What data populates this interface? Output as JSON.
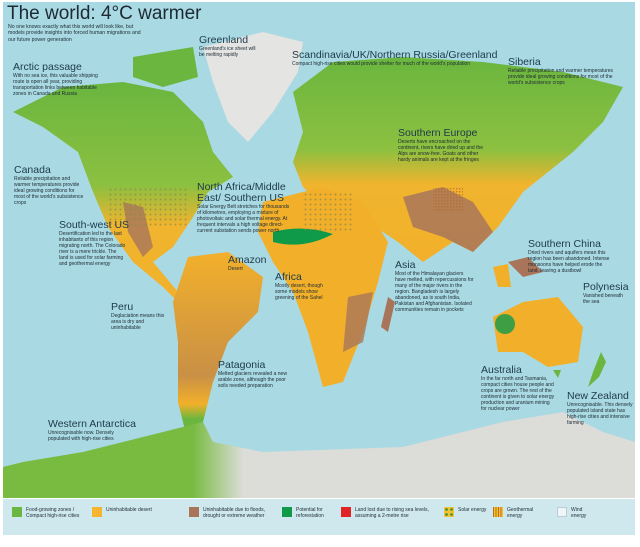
{
  "header": {
    "title": "The world: 4°C warmer",
    "subtitle": "No one knows exactly what this world will look like, but models provide insights into forced human migrations and our future power generation"
  },
  "regions": [
    {
      "heading": "Arctic passage",
      "text": "With no sea ice, this valuable shipping route is open all year, providing transportation links between habitable zones in Canada and Russia"
    },
    {
      "heading": "Greenland",
      "text": "Greenland's ice sheet will be melting rapidly"
    },
    {
      "heading": "Scandinavia/UK/Northern Russia/Greenland",
      "text": "Compact high-rise cities would provide shelter for much of the world's population"
    },
    {
      "heading": "Siberia",
      "text": "Reliable precipitation and warmer temperatures provide ideal growing conditions for most of the world's subsistence crops"
    },
    {
      "heading": "Canada",
      "text": "Reliable precipitation and warmer temperatures provide ideal growing conditions for most of the world's subsistence crops"
    },
    {
      "heading": "Southern Europe",
      "text": "Deserts have encroached on the continent, rivers have dried up and the Alps are snow-free. Goats and other hardy animals are kept at the fringes"
    },
    {
      "heading": "North Africa/Middle East/ Southern US",
      "text": "Solar Energy Belt stretches for thousands of kilometres, employing a mixture of photovoltaic and solar thermal energy. At frequent intervals a high voltage direct-current substation sends power north"
    },
    {
      "heading": "South-west US",
      "text": "Desertification led to the last inhabitants of this region migrating north. The Colorado river is a mere trickle. The land is used for solar farming and geothermal energy"
    },
    {
      "heading": "Southern China",
      "text": "Dried rivers and aquifers mean this region has been abandoned. Intense monsoons have helped erode the land, leaving a dustbowl"
    },
    {
      "heading": "Amazon",
      "text": "Desert"
    },
    {
      "heading": "Africa",
      "text": "Mostly desert, though some models show greening of the Sahel"
    },
    {
      "heading": "Asia",
      "text": "Most of the Himalayan glaciers have melted, with repercussions for many of the major rivers in the region. Bangladesh is largely abandoned, as is south India, Pakistan and Afghanistan. Isolated communities remain in pockets"
    },
    {
      "heading": "Polynesia",
      "text": "Vanished beneath the sea"
    },
    {
      "heading": "Peru",
      "text": "Deglaciation means this area is dry and uninhabitable"
    },
    {
      "heading": "Patagonia",
      "text": "Melted glaciers revealed a new arable zone, although the poor soils needed preparation"
    },
    {
      "heading": "Australia",
      "text": "In the far north and Tasmania, compact cities house people and crops are grown. The rest of the continent is given to solar energy production and uranium mining for nuclear power"
    },
    {
      "heading": "New Zealand",
      "text": "Unrecognisable. This densely populated island state has high-rise cities and intensive farming"
    },
    {
      "heading": "Western Antarctica",
      "text": "Unrecognisable now. Densely populated with high-rise cities"
    }
  ],
  "legend": [
    {
      "label": "Food-growing zones / Compact high-rise cities",
      "color": "#6ab63f"
    },
    {
      "label": "Uninhabitable desert",
      "color": "#f5b52e"
    },
    {
      "label": "Uninhabitable due to floods, drought or extreme weather",
      "color": "#a8755a"
    },
    {
      "label": "Potential for reforestation",
      "color": "#0f9a4a"
    },
    {
      "label": "Land lost due to rising sea levels, assuming a 2-metre rise",
      "color": "#e02424"
    },
    {
      "label": "Solar energy",
      "icon": "solar-dots"
    },
    {
      "label": "Geothermal energy",
      "icon": "geothermal-grid"
    },
    {
      "label": "Wind energy",
      "icon": "wind-marker"
    }
  ],
  "colors": {
    "ocean": "#a9d9e2",
    "ice": "#e4e4e2",
    "legend_band": "#cfe8ee"
  }
}
